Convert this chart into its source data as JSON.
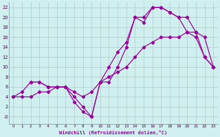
{
  "background_color": "#cff0ee",
  "line_color": "#990099",
  "grid_color": "#b0c8c8",
  "xlabel": "Windchill (Refroidissement éolien,°C)",
  "xlim": [
    -0.5,
    23.5
  ],
  "ylim": [
    -1.5,
    23
  ],
  "xticks": [
    0,
    1,
    2,
    3,
    4,
    5,
    6,
    7,
    8,
    9,
    10,
    11,
    12,
    13,
    14,
    15,
    16,
    17,
    18,
    19,
    20,
    21,
    22,
    23
  ],
  "yticks": [
    0,
    2,
    4,
    6,
    8,
    10,
    12,
    14,
    16,
    18,
    20,
    22
  ],
  "ytick_labels": [
    "-0",
    "2",
    "4",
    "6",
    "8",
    "10",
    "12",
    "14",
    "16",
    "18",
    "20",
    "22"
  ],
  "curve1_x": [
    0,
    1,
    2,
    3,
    4,
    5,
    6,
    7,
    8,
    9,
    10,
    11,
    12,
    13,
    14,
    15,
    16,
    17,
    18,
    19,
    20,
    21,
    22,
    23
  ],
  "curve1_y": [
    4,
    4,
    4,
    5,
    5,
    6,
    6,
    5,
    4,
    5,
    7,
    8,
    9,
    10,
    12,
    14,
    15,
    16,
    16,
    16,
    17,
    17,
    16,
    10
  ],
  "curve2_x": [
    2,
    3,
    4,
    5,
    6,
    7,
    8,
    9,
    10,
    11,
    12,
    13,
    14,
    15,
    16,
    17,
    18,
    19,
    20,
    21,
    22,
    23
  ],
  "curve2_y": [
    7,
    7,
    6,
    6,
    6,
    4,
    2,
    0,
    7,
    10,
    13,
    15,
    20,
    20,
    22,
    22,
    21,
    20,
    20,
    17,
    12,
    10
  ],
  "curve3_x": [
    0,
    1,
    2,
    3,
    4,
    5,
    6,
    7,
    8,
    9,
    10,
    11,
    12,
    13,
    14,
    15,
    16,
    17,
    18,
    19,
    20,
    21,
    22,
    23
  ],
  "curve3_y": [
    4,
    5,
    7,
    7,
    6,
    6,
    6,
    3,
    1,
    0,
    7,
    7,
    10,
    14,
    20,
    19,
    22,
    22,
    21,
    20,
    17,
    16,
    12,
    10
  ]
}
